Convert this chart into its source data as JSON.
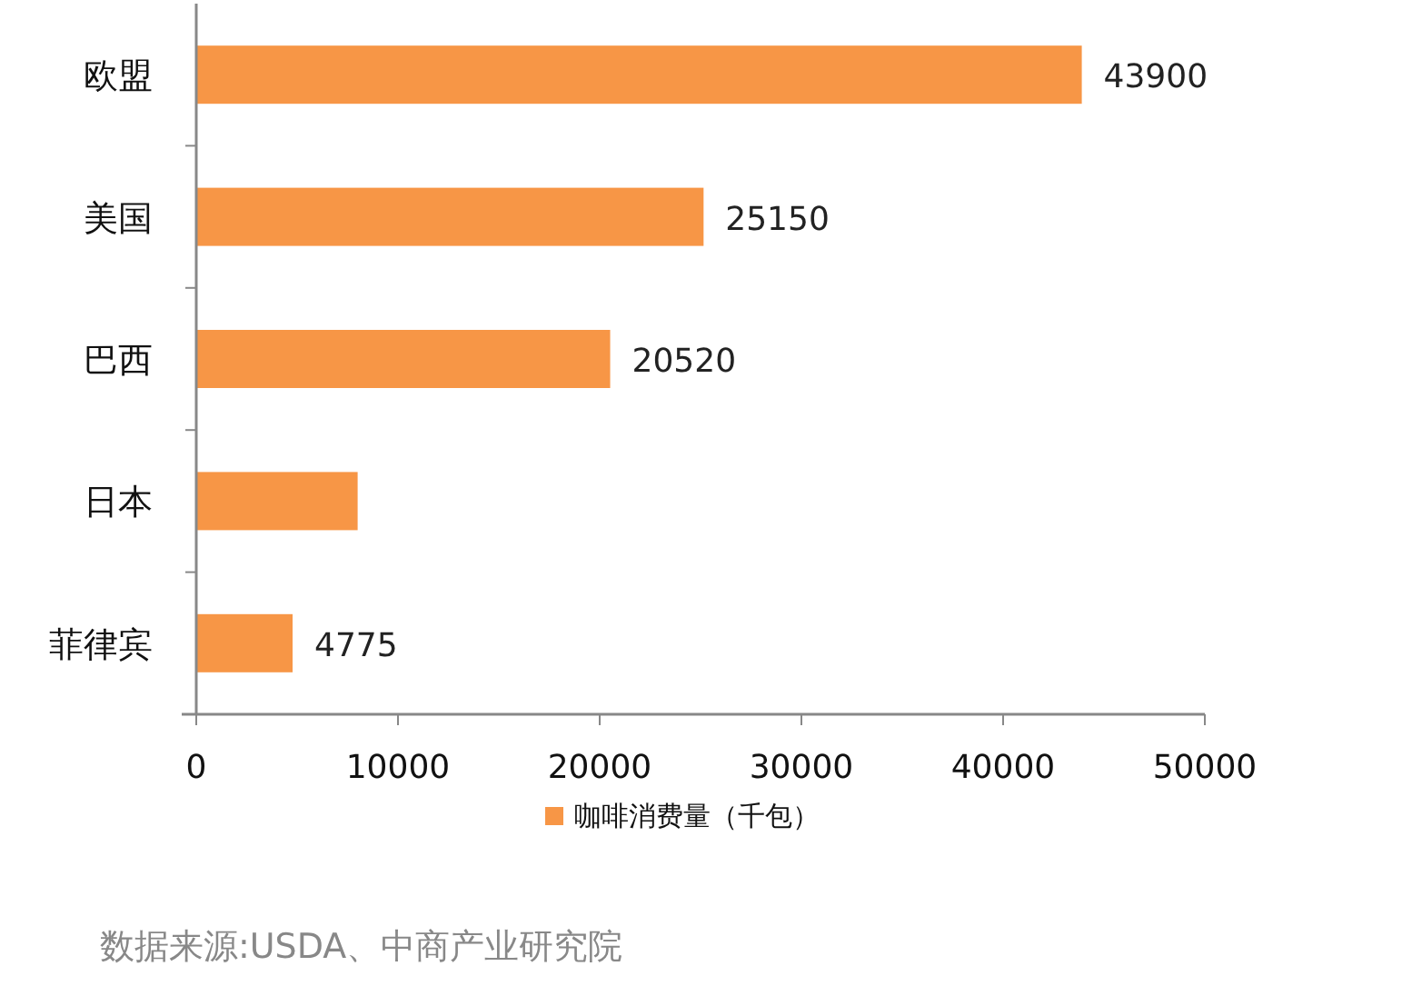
{
  "chart_data": {
    "type": "bar",
    "orientation": "horizontal",
    "categories": [
      "欧盟",
      "美国",
      "巴西",
      "日本",
      "菲律宾"
    ],
    "series": [
      {
        "name": "咖啡消费量（千包）",
        "color": "#f79646",
        "values": [
          43900,
          25150,
          20520,
          8000,
          4775
        ],
        "value_labels": [
          "43900",
          "25150",
          "20520",
          null,
          "4775"
        ]
      }
    ],
    "xlim": [
      0,
      50000
    ],
    "xticks": [
      0,
      10000,
      20000,
      30000,
      40000,
      50000
    ],
    "grid": false,
    "legend": "bottom",
    "annotations": [
      "数据来源:USDA、中商产业研究院"
    ]
  }
}
